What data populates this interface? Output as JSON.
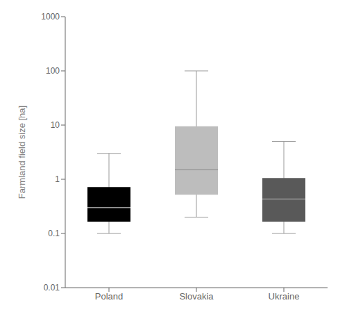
{
  "chart_data": {
    "type": "box",
    "categories": [
      "Poland",
      "Slovakia",
      "Ukraine"
    ],
    "whisker_low": [
      0.1,
      0.2,
      0.1
    ],
    "q1": [
      0.165,
      0.52,
      0.165
    ],
    "median": [
      0.3,
      1.5,
      0.43
    ],
    "q3": [
      0.72,
      9.5,
      1.05
    ],
    "whisker_high": [
      3.0,
      100.0,
      5.0
    ],
    "colors": [
      "#000000",
      "#bdbdbd",
      "#595959"
    ],
    "ylabel": "Farmland field size [ha]",
    "log": "y",
    "ylim": [
      0.01,
      1000
    ],
    "yticks": [
      0.01,
      0.1,
      1,
      10,
      100,
      1000
    ],
    "grid": false
  }
}
